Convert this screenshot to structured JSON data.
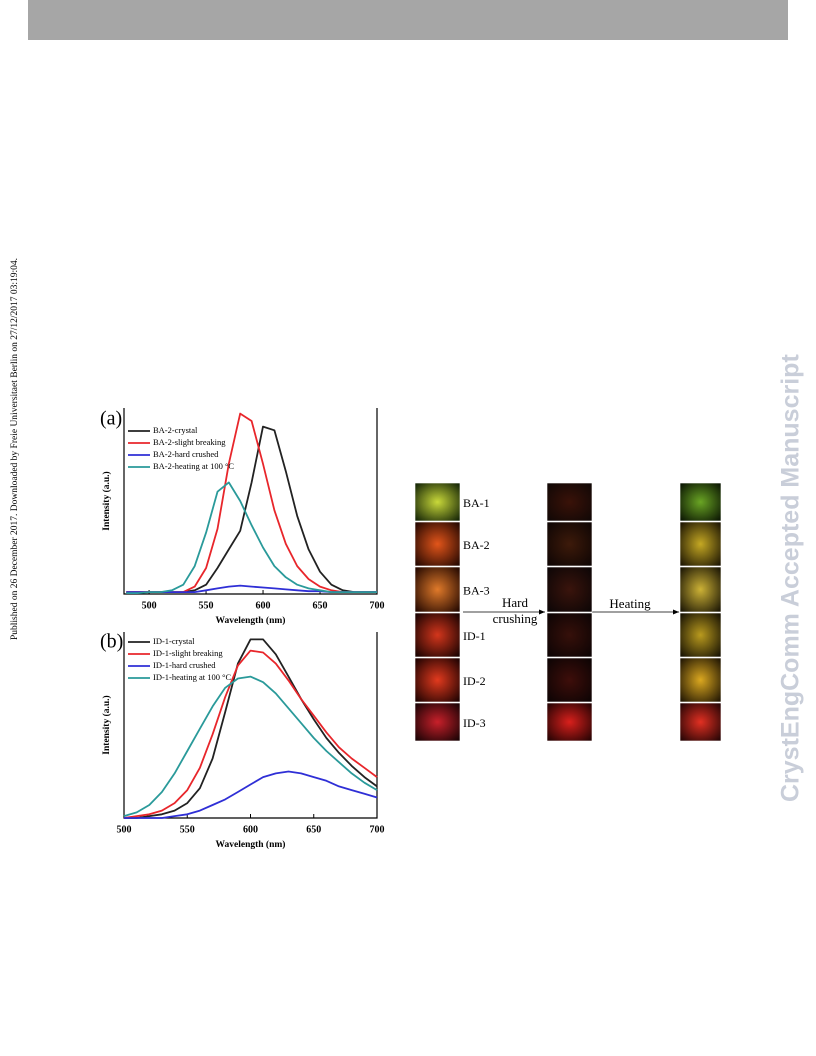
{
  "side_note": "Published on 26 December 2017. Downloaded by Freie Universitaet Berlin on 27/12/2017 03:19:04.",
  "watermark": "CrystEngComm Accepted Manuscript",
  "chart_data": [
    {
      "type": "line",
      "title": "(a)",
      "x_label": "Wavelength (nm)",
      "y_label": "Intensity (a.u.)",
      "xlim": [
        478,
        700
      ],
      "xticks": [
        500,
        550,
        600,
        650,
        700
      ],
      "ylim": [
        0,
        1
      ],
      "x": [
        480,
        490,
        500,
        510,
        520,
        530,
        540,
        550,
        560,
        570,
        580,
        590,
        600,
        610,
        620,
        630,
        640,
        650,
        660,
        670,
        680,
        690,
        700
      ],
      "series": [
        {
          "name": "BA-2-crystal",
          "color": "#222222",
          "values": [
            0.01,
            0.01,
            0.01,
            0.01,
            0.01,
            0.01,
            0.02,
            0.05,
            0.14,
            0.24,
            0.34,
            0.6,
            0.9,
            0.88,
            0.66,
            0.42,
            0.24,
            0.12,
            0.05,
            0.02,
            0.01,
            0.01,
            0.01
          ]
        },
        {
          "name": "BA-2-slight breaking",
          "color": "#e8262b",
          "values": [
            0.01,
            0.01,
            0.01,
            0.01,
            0.01,
            0.01,
            0.04,
            0.14,
            0.35,
            0.7,
            0.97,
            0.93,
            0.7,
            0.45,
            0.27,
            0.15,
            0.08,
            0.04,
            0.02,
            0.01,
            0.01,
            0.01,
            0.01
          ]
        },
        {
          "name": "BA-2-hard crushed",
          "color": "#2f2fd6",
          "values": [
            0.01,
            0.01,
            0.01,
            0.01,
            0.01,
            0.01,
            0.01,
            0.02,
            0.03,
            0.04,
            0.045,
            0.04,
            0.035,
            0.03,
            0.025,
            0.02,
            0.015,
            0.015,
            0.01,
            0.01,
            0.01,
            0.01,
            0.01
          ]
        },
        {
          "name": "BA-2-heating at 100 °C",
          "color": "#2a9a9a",
          "values": [
            0.005,
            0.005,
            0.01,
            0.01,
            0.02,
            0.05,
            0.15,
            0.33,
            0.55,
            0.6,
            0.5,
            0.37,
            0.25,
            0.15,
            0.09,
            0.05,
            0.03,
            0.02,
            0.01,
            0.01,
            0.01,
            0.01,
            0.01
          ]
        }
      ]
    },
    {
      "type": "line",
      "title": "(b)",
      "x_label": "Wavelength (nm)",
      "y_label": "Intensity (a.u.)",
      "xlim": [
        500,
        700
      ],
      "xticks": [
        500,
        550,
        600,
        650,
        700
      ],
      "ylim": [
        0,
        1
      ],
      "x": [
        500,
        510,
        520,
        530,
        540,
        550,
        560,
        570,
        580,
        590,
        600,
        610,
        620,
        630,
        640,
        650,
        660,
        670,
        680,
        690,
        700
      ],
      "series": [
        {
          "name": "ID-1-crystal",
          "color": "#222222",
          "values": [
            0,
            0,
            0.01,
            0.02,
            0.04,
            0.08,
            0.16,
            0.32,
            0.57,
            0.83,
            0.96,
            0.96,
            0.88,
            0.76,
            0.64,
            0.53,
            0.43,
            0.35,
            0.28,
            0.22,
            0.17
          ]
        },
        {
          "name": "ID-1-slight breaking",
          "color": "#e8262b",
          "values": [
            0,
            0.01,
            0.02,
            0.04,
            0.08,
            0.15,
            0.27,
            0.45,
            0.65,
            0.82,
            0.9,
            0.89,
            0.83,
            0.74,
            0.64,
            0.55,
            0.46,
            0.38,
            0.32,
            0.27,
            0.22
          ]
        },
        {
          "name": "ID-1-hard crushed",
          "color": "#2f2fd6",
          "values": [
            0,
            0,
            0,
            0,
            0.01,
            0.02,
            0.04,
            0.07,
            0.1,
            0.14,
            0.18,
            0.22,
            0.24,
            0.25,
            0.24,
            0.22,
            0.2,
            0.17,
            0.15,
            0.13,
            0.11
          ]
        },
        {
          "name": "ID-1-heating at 100 °C",
          "color": "#2a9a9a",
          "values": [
            0.01,
            0.03,
            0.07,
            0.14,
            0.24,
            0.36,
            0.48,
            0.6,
            0.7,
            0.75,
            0.76,
            0.73,
            0.67,
            0.59,
            0.51,
            0.43,
            0.36,
            0.3,
            0.24,
            0.19,
            0.15
          ]
        }
      ]
    }
  ],
  "figure_c": {
    "samples": [
      "BA-1",
      "BA-2",
      "BA-3",
      "ID-1",
      "ID-2",
      "ID-3"
    ],
    "step_1": [
      "Hard",
      "crushing"
    ],
    "step_2": "Heating"
  }
}
